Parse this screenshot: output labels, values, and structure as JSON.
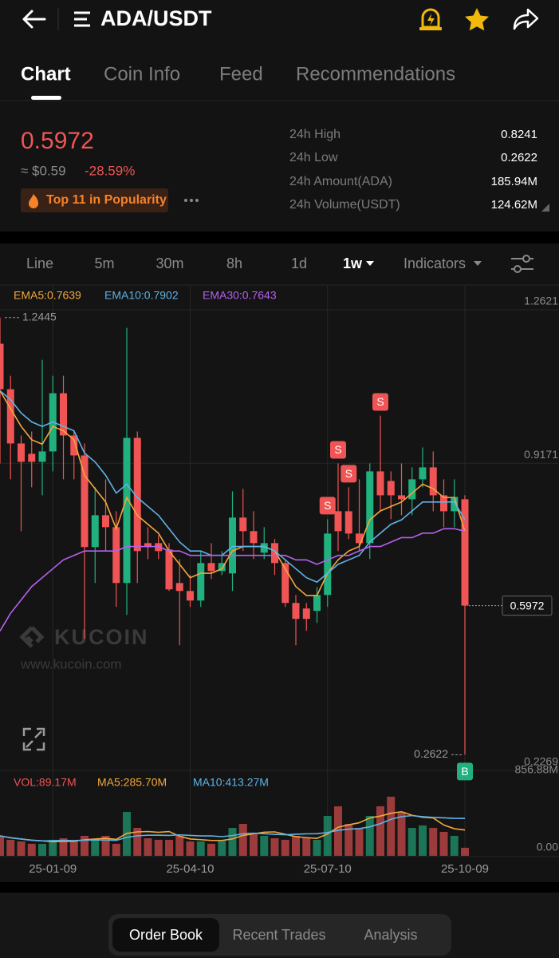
{
  "header": {
    "pair": "ADA/USDT"
  },
  "tabs": [
    "Chart",
    "Coin Info",
    "Feed",
    "Recommendations"
  ],
  "price": {
    "last": "0.5972",
    "usd": "≈ $0.59",
    "change": "-28.59%",
    "badge": "Top 11 in Popularity"
  },
  "stats": [
    {
      "label": "24h High",
      "value": "0.8241"
    },
    {
      "label": "24h Low",
      "value": "0.2622"
    },
    {
      "label": "24h Amount(ADA)",
      "value": "185.94M"
    },
    {
      "label": "24h Volume(USDT)",
      "value": "124.62M"
    }
  ],
  "intervals": [
    "Line",
    "5m",
    "30m",
    "8h",
    "1d",
    "1w",
    "Indicators"
  ],
  "watermark": {
    "brand": "KUCOIN",
    "url": "www.kucoin.com"
  },
  "chart_data": {
    "type": "candlestick",
    "categories": [
      null,
      null,
      null,
      null,
      null,
      "25-01-09",
      null,
      null,
      null,
      null,
      null,
      null,
      null,
      null,
      null,
      null,
      null,
      null,
      "25-04-10",
      null,
      null,
      null,
      null,
      null,
      null,
      null,
      null,
      null,
      null,
      null,
      null,
      "25-07-10",
      null,
      null,
      null,
      null,
      null,
      null,
      null,
      null,
      null,
      null,
      null,
      null,
      "25-10-09"
    ],
    "open": [
      1.1857,
      1.0835,
      0.9616,
      0.9383,
      0.9204,
      0.9437,
      1.0745,
      0.9795,
      0.9347,
      0.7287,
      0.8003,
      0.7735,
      0.648,
      0.9742,
      0.7376,
      0.7376,
      0.7233,
      0.648,
      0.6301,
      0.6086,
      0.6928,
      0.6749,
      0.6695,
      0.795,
      0.7645,
      0.7161,
      0.7376,
      0.6928,
      0.6032,
      0.5907,
      0.5853,
      0.6211,
      0.8093,
      0.8093,
      0.7591,
      0.7376,
      0.8989,
      0.8774,
      0.8451,
      0.8362,
      0.881,
      0.9079,
      0.8451,
      0.8093,
      0.8362
    ],
    "high": [
      1.2445,
      1.1139,
      0.9795,
      0.9885,
      1.1498,
      1.1139,
      1.1139,
      0.9885,
      0.9616,
      0.8631,
      0.881,
      0.8093,
      1.2215,
      0.9885,
      0.7735,
      0.7555,
      0.7376,
      0.7018,
      0.6659,
      0.7197,
      0.7376,
      0.7197,
      0.8541,
      0.8595,
      0.8093,
      0.7735,
      0.7466,
      0.7018,
      0.6211,
      0.6032,
      0.6391,
      0.7914,
      0.9168,
      0.8631,
      0.881,
      0.9168,
      1.0243,
      0.8989,
      0.9168,
      0.9079,
      0.9527,
      0.9437,
      0.881,
      0.881,
      0.8451
    ],
    "low": [
      0.9168,
      0.881,
      0.7645,
      0.8631,
      0.8451,
      0.8989,
      0.881,
      0.881,
      0.5226,
      0.648,
      0.7197,
      0.5943,
      0.5763,
      0.648,
      0.7018,
      0.7018,
      0.6301,
      0.5082,
      0.5943,
      0.5943,
      0.657,
      0.6659,
      0.6301,
      0.7197,
      0.7018,
      0.7018,
      0.6659,
      0.5943,
      0.5082,
      0.5405,
      0.5584,
      0.5943,
      0.7197,
      0.7466,
      0.7197,
      0.7018,
      0.8093,
      0.7914,
      0.8003,
      0.8003,
      0.8631,
      0.8093,
      0.7735,
      0.7735,
      0.2622
    ],
    "close": [
      1.0835,
      0.9616,
      0.9204,
      0.9204,
      0.9437,
      1.0745,
      0.9795,
      0.9347,
      0.7287,
      0.8003,
      0.7735,
      0.648,
      0.9742,
      0.7197,
      0.7287,
      0.7197,
      0.6337,
      0.6301,
      0.6086,
      0.6928,
      0.6749,
      0.6928,
      0.795,
      0.7645,
      0.7376,
      0.7376,
      0.6928,
      0.6032,
      0.5674,
      0.5674,
      0.6211,
      0.7591,
      0.7645,
      0.7591,
      0.7376,
      0.8989,
      0.8451,
      0.8451,
      0.8362,
      0.881,
      0.9079,
      0.8451,
      0.8093,
      0.8416,
      0.5972
    ],
    "up_color": "#21b17f",
    "down_color": "#f05454",
    "ylim": [
      0.2269,
      1.3159
    ],
    "yticks": [
      1.2621,
      0.9171,
      0.2269
    ],
    "grid": true,
    "indicators": [
      {
        "label": "EMA5:0.7639",
        "color": "#f3a73b",
        "values": [
          1.08,
          1.04,
          1.0,
          0.97,
          0.96,
          1.0,
          0.99,
          0.97,
          0.89,
          0.86,
          0.83,
          0.77,
          0.84,
          0.8,
          0.78,
          0.76,
          0.72,
          0.69,
          0.66,
          0.67,
          0.67,
          0.68,
          0.72,
          0.73,
          0.73,
          0.73,
          0.72,
          0.68,
          0.64,
          0.62,
          0.62,
          0.67,
          0.7,
          0.72,
          0.73,
          0.79,
          0.81,
          0.82,
          0.83,
          0.85,
          0.87,
          0.86,
          0.84,
          0.84,
          0.7639
        ]
      },
      {
        "label": "EMA10:0.7902",
        "color": "#5fb3e6",
        "values": [
          1.08,
          1.06,
          1.03,
          1.01,
          1.0,
          1.01,
          1.0,
          0.99,
          0.94,
          0.92,
          0.89,
          0.85,
          0.87,
          0.84,
          0.82,
          0.8,
          0.77,
          0.74,
          0.72,
          0.72,
          0.71,
          0.71,
          0.73,
          0.73,
          0.73,
          0.73,
          0.72,
          0.7,
          0.68,
          0.66,
          0.65,
          0.67,
          0.69,
          0.7,
          0.71,
          0.74,
          0.76,
          0.78,
          0.79,
          0.81,
          0.83,
          0.83,
          0.83,
          0.83,
          0.7902
        ]
      },
      {
        "label": "EMA30:0.7643",
        "color": "#b860f0",
        "values": [
          0.54,
          0.58,
          0.61,
          0.64,
          0.66,
          0.68,
          0.7,
          0.71,
          0.72,
          0.72,
          0.72,
          0.72,
          0.73,
          0.73,
          0.73,
          0.73,
          0.72,
          0.72,
          0.71,
          0.71,
          0.71,
          0.71,
          0.71,
          0.71,
          0.71,
          0.71,
          0.71,
          0.71,
          0.7,
          0.7,
          0.69,
          0.7,
          0.71,
          0.71,
          0.72,
          0.73,
          0.73,
          0.74,
          0.75,
          0.75,
          0.76,
          0.76,
          0.77,
          0.77,
          0.7643
        ]
      }
    ],
    "price_labels": {
      "high": 1.2445,
      "low": 0.2622,
      "last": 0.5972
    },
    "markers": [
      "S",
      "S",
      "S",
      "S",
      "B"
    ],
    "volume": {
      "label": "VOL:89.17M",
      "values": [
        221,
        177,
        159,
        133,
        133,
        177,
        194,
        159,
        221,
        177,
        221,
        133,
        486,
        309,
        194,
        177,
        177,
        221,
        159,
        159,
        133,
        177,
        309,
        353,
        247,
        221,
        194,
        177,
        221,
        194,
        177,
        442,
        548,
        353,
        309,
        442,
        548,
        654,
        486,
        309,
        336,
        309,
        265,
        221,
        89.17
      ],
      "ylim": [
        0,
        856.88
      ],
      "yticks": [
        {
          "value": 856.88,
          "label": "856.88M"
        },
        {
          "value": 0,
          "label": "0.00"
        }
      ],
      "ma": [
        {
          "label": "MA5:285.70M",
          "color": "#f3a73b",
          "values": [
            221,
            199,
            186,
            173,
            165,
            156,
            159,
            161,
            177,
            186,
            194,
            182,
            248,
            265,
            269,
            260,
            269,
            216,
            186,
            179,
            170,
            170,
            187,
            226,
            244,
            261,
            265,
            238,
            212,
            201,
            193,
            242,
            316,
            343,
            366,
            419,
            440,
            471,
            488,
            448,
            427,
            419,
            341,
            300,
            285.7
          ]
        },
        {
          "label": "MA10:413.27M",
          "color": "#5fb3e6",
          "values": [
            221,
            199,
            186,
            173,
            165,
            167,
            171,
            169,
            173,
            175,
            175,
            171,
            204,
            222,
            228,
            228,
            226,
            232,
            226,
            220,
            220,
            212,
            224,
            244,
            250,
            245,
            238,
            233,
            239,
            243,
            245,
            258,
            282,
            295,
            301,
            321,
            356,
            404,
            434,
            445,
            434,
            425,
            420,
            415,
            413.27
          ]
        }
      ]
    }
  },
  "bottom_tabs": [
    "Order Book",
    "Recent Trades",
    "Analysis"
  ]
}
